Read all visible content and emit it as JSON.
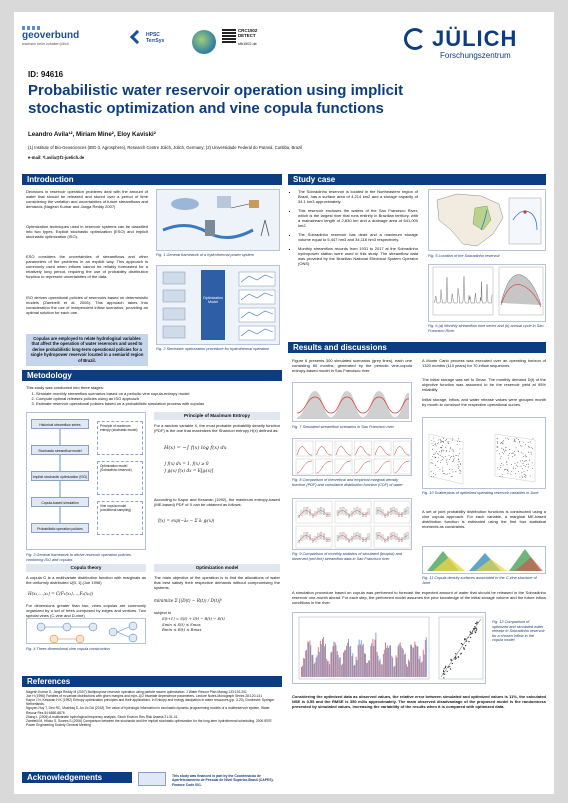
{
  "header": {
    "geoverbund_name": "geoverbund",
    "geoverbund_sub": "wachsen beim zuhalten jülich",
    "hpsc_label": "HPSC TerrSys",
    "crc_label": "CRC1502 DETECT",
    "crc_url": "sfb1502.de",
    "julich_name": "JÜLICH",
    "julich_sub": "Forschungszentrum"
  },
  "poster": {
    "id": "ID: 94616",
    "title_line1": "Probabilistic water reservoir operation using implicit",
    "title_line2": "stochastic optimization and vine copula functions",
    "authors": "Leandro Avila¹², Miriam Mine², Eloy Kaviski²",
    "affiliations": "(1) Institute of Bio-Geosciences (IBG-3, Agrosphere), Research Centre Jülich, Jülich, Germany; (2) Universidade Federal do Paraná, Curitiba, Brazil",
    "email": "e-mail: *l.avila@fz-juelich.de"
  },
  "sections": {
    "introduction": "Introduction",
    "case_study": "Study case",
    "methodology": "Metodology",
    "results": "Results and discussions",
    "references": "References",
    "acknowledgements": "Acknowledgements"
  },
  "intro": {
    "p1": "Decisions in reservoir operation problems deal with the amount of water that should be released and stored over a period of time considering the variation and uncertainties of future streamflows and demands (Nagesh Kumar and Janga Reddy 2007)",
    "p2": "Optimization techniques used in reservoir systems can be classified into two types. Explicit stochastic optimization (ESO) and implicit stochastic optimization (ISO).",
    "p3": "ESO considers the uncertainties of streamflows and other parameters of the problems in an explicit way. This approach is commonly used when inflows cannot be reliably forecasted for a relatively long period, requiring the use of probability distribution function to represent uncertainties of the data.",
    "p4": "ISO derives operational policies of reservoirs based on deterministic models (Zambelli et al. 2006). This approach takes into consideration the use of independent inflow scenarios, providing an optimal solution for each one.",
    "highlight": "Copulas are employed to relate hydrological variables that affect the operation of water reservoirs and used to derive probabilistic long-term operational policies for a single hydropower reservoir located in a semiarid region of Brazil.",
    "fig1_caption": "Fig. 1 General framework of a hydrothermal power system",
    "fig2_caption": "Fig. 2 Stochastic optimization procedure for hydrothermal operation",
    "fig2_box_label": "Optimization Model"
  },
  "case": {
    "b1": "The Sobradinho reservoir is located in the Northeastern region of Brazil, has a surface area of 4,214 km2 and a storage capacity of 34.1 km3 approximately.",
    "b2": "This reservoir encloses the waters of the Sao Francisco River, which is the largest river that runs entirely in Brazilian territory, with a mainstream length of 2,830 km and a drainage area of 641,000 km2.",
    "b3": "The Sobradinho reservoir has dead and a maximum storage volume equal to 5,447 hm3 and 34,116 hm3 respectively.",
    "b4": "Monthly streamflow records from 1931 to 2017 at the Sobradinho hydropower station were used in this study. The streamflow data was provided by the Brazilian National Electrical System Operator (ONS)",
    "fig5_caption": "Fig. 5 Location of the Sobradinho reservoir",
    "fig6_caption": "Fig. 6 (a) Monthly streamflow time series and (b) annual cycle in Sao Francisco River"
  },
  "method": {
    "intro": "This study was conducted into three stages:",
    "steps": [
      "Simulate monthly streamflow scenarios based on a periodic vine copula-entropy model",
      "Compute optimal releases policies using an ISO approach",
      "Estimate reservoir operational policies based on a probabilistic simulation process with copulas"
    ],
    "fig3_caption": "Fig. 3 General framework to derive reservoir operation policies combining ISO and copulas",
    "flow_nodes": [
      "Historical streamflow series",
      "Stochastic streamflow model",
      "Implicit stochastic optimization (ISO)",
      "Copula-based simulation",
      "Probabilistic operation policies"
    ],
    "flow_side": [
      "Principle of maximum entropy (stochastic model)",
      "Optimization model (Sobradinho reservoir)",
      "Vine copula model (conditional sampling)"
    ],
    "entropy_title": "Principle of Maximum Entropy",
    "entropy_p1": "For a random variable X, the most probable probability density function (PDF) is the one that maximizes the Shannon entropy H(x) defined as:",
    "entropy_p2": "According to Kapur and Kesavan (1992), the maximum entropy-based (ME-based) PDF of X can be obtained as follows:",
    "copula_title": "Copula theory",
    "copula_p1": "A copula C is a multivariate distribution function with marginals as the uniformly distributed U[0, 1] (Joe 1996)",
    "copula_p2": "For dimensions greater than two, vines copulas are commonly organized by a set of trees composed by edges and vertices. Two special vines (C-vine and D-vine)",
    "fig4_caption": "Fig. 4 Three-dimensional vine copula construction",
    "opt_title": "Optimization model",
    "opt_p1": "The main objective of the operation is to find the allocations of water that best satisfy their respective demands without compromising the systems.",
    "opt_minimize": "minimize",
    "opt_subject": "subject to"
  },
  "results": {
    "p1": "Figure 6 presents 300 simulated scenarios (grey lines), each one consisting 60 months, generated by the periodic vine-copula entropy-based model in Sao Francisco river",
    "p_right1": "A Monte Carlo process was executed over an operating horizon of 1320 months (110 years) for 70 inflow sequences.",
    "p_right2": "The initial storage was set to Smax. The monthly demand D(t) of the objective function was assumed to be the reservoir yield at 95% reliability",
    "p_right3": "Initial storage, inflow, and water release values were grouped month by month to construct the respective operational curves.",
    "fig7_caption": "Fig. 7 Simulated streamflow scenarios in Sao Francisco river",
    "fig8_caption": "Fig. 8 Comparison of theoretical and empirical marginal density function (PDF) and cumulative distribution function (CDF) of water",
    "fig9_caption": "Fig. 9 Comparison of monthly statistics of simulated (boxplot) and observed (red line) streamflow data in Sao Francisco river",
    "fig10_caption": "Fig. 10 Scatterplots of optimized operating reservoir variables in June",
    "fig11_caption": "Fig. 11 Copula density surfaces associated to the C-vine structure of June",
    "p_mid": "A set of joint probability distribution functions is constructed using a vine copula approach. For each variable, a marginal ME-based distribution function is estimated using the first four statistical moments as constraints.",
    "p_wide": "A simulation procedure based on copula was performed to forecast the expected amount of water that should be released in the Sobradinho reservoir one-month ahead. For each step, the performed model assumes the prior knowledge of the initial storage volume and the future inflow conditions in the river.",
    "fig12_caption": "Fig. 12 Comparison of optimized and simulated water release in Sobradinho reservoir for a chosen inflow in the copula model",
    "conclusion": "Considering the optimized data as observed values, the relative error between simulated and optimized values is 11%, the calculated NSE is 0.55 and the RMSE is 350 m3/s approximately. The main observed disadvantage of the proposed model is the randomness presented by simulated values, increasing the variability of the results when it is compared with optimized data."
  },
  "references": {
    "items": [
      "Nagesh Kumar D, Janga Reddy M (2007) Multipurpose reservoir operation using particle swarm optimization. J Water Resour Plan Manag 133:192-201",
      "Joe H (1996) Families of m-variate distributions with given margins and m(m-1)/2 bivariate dependence parameters. Lecture Notes-Monograph Series 28:120-141",
      "Kapur J N, Kesavan H K (1992) Entropy optimization principles and their applications. In Entropy and energy dissipation in water resources (pp. 3-20). Dordrecht: Springer Netherlands.",
      "Nguyen-Huy T, Deo RC, Mushtaq S, An-Vo DA (2018) The value of hydrologic information in stochastic dynamic programming models of a multireservoir system. Water Resour Res 54:6860-6876",
      "Zhang L (2006) A multivariate hydrological frequency analysis. Stoch Environ Res Risk Assess 21:31-41",
      "Zambelli M, Hiloko S, Soares S (2006) Comparison between the stochastic and the implicit stochastic optimization for the long-term hydrothermal scheduling. 2006 IEEE Power Engineering Society General Meeting"
    ]
  },
  "ack": {
    "text": "This study was financed in part by the Coordenacao de Aperfeicoamento de Pessoal de Nivel Superior-Brasil (CAPES)-Finance Code 001."
  }
}
